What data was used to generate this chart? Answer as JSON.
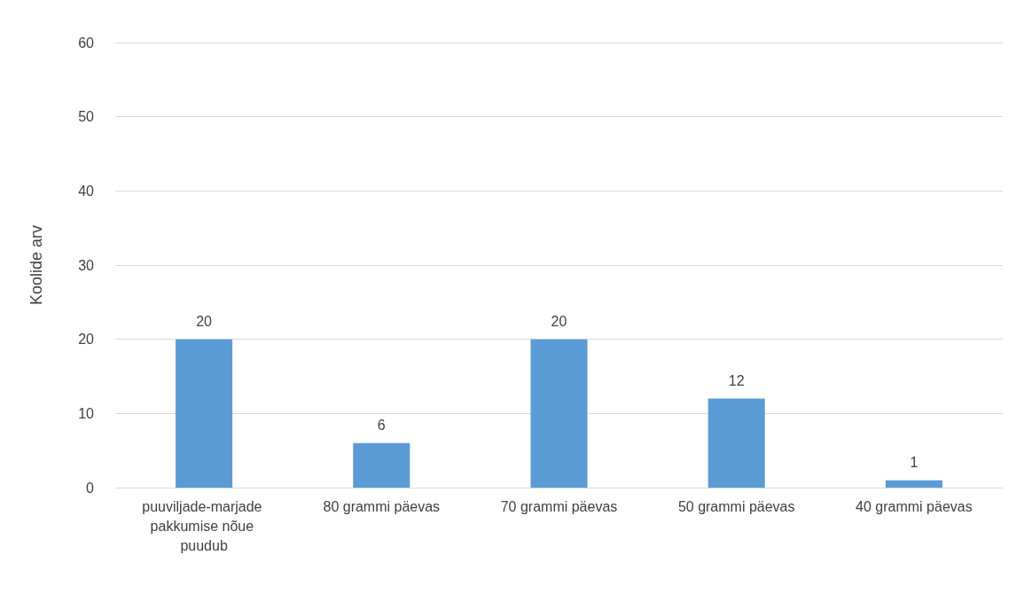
{
  "chart_data": {
    "type": "bar",
    "ylabel": "Koolide arv",
    "categories": [
      "puuviljade-marjade pakkumise nõue puudub",
      "80 grammi päevas",
      "70 grammi päevas",
      "50 grammi päevas",
      "40 grammi päevas"
    ],
    "values": [
      20,
      6,
      20,
      12,
      1
    ],
    "color": "#5b9bd5",
    "ylim": [
      0,
      60
    ],
    "yticks": [
      0,
      10,
      20,
      30,
      40,
      50,
      60
    ],
    "grid": "y",
    "data_labels": true
  }
}
